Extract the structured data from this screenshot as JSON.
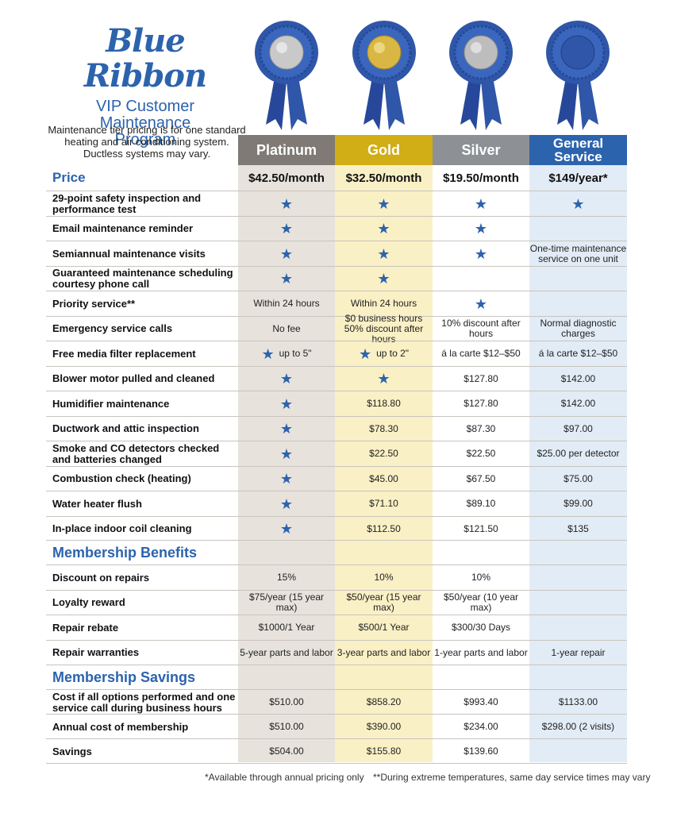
{
  "brand": {
    "title": "Blue Ribbon",
    "subtitle": [
      "VIP Customer",
      "Maintenance",
      "Program"
    ]
  },
  "intro": "Maintenance tier pricing is for one standard heating and air conditioning system. Ductless systems may vary.",
  "colors": {
    "accent": "#2c63ad",
    "platinum_header": "#7f7a76",
    "gold_header": "#d1ad16",
    "silver_header": "#8d9095",
    "general_header": "#2c63ad",
    "platinum_bg": "#e7e3dc",
    "gold_bg": "#faf0c5",
    "general_bg": "#e2ecf6"
  },
  "ribbons": [
    {
      "name": "platinum",
      "medal": "#c9c9c9",
      "icon": "ribbon-award-icon"
    },
    {
      "name": "gold",
      "medal": "#d9b744",
      "icon": "ribbon-award-icon"
    },
    {
      "name": "silver",
      "medal": "#bdbdbd",
      "icon": "ribbon-award-icon"
    },
    {
      "name": "general",
      "medal": "#2f56a8",
      "icon": "ribbon-award-icon"
    }
  ],
  "tiers": [
    "Platinum",
    "Gold",
    "Silver",
    "General Service"
  ],
  "price": {
    "label": "Price",
    "values": [
      "$42.50/month",
      "$32.50/month",
      "$19.50/month",
      "$149/year*"
    ]
  },
  "features": [
    {
      "label": "29-point safety inspection and performance test",
      "values": [
        "★",
        "★",
        "★",
        "★"
      ]
    },
    {
      "label": "Email maintenance reminder",
      "values": [
        "★",
        "★",
        "★",
        ""
      ]
    },
    {
      "label": "Semiannual maintenance visits",
      "values": [
        "★",
        "★",
        "★",
        "One-time maintenance service on one unit"
      ]
    },
    {
      "label": "Guaranteed maintenance scheduling courtesy phone call",
      "values": [
        "★",
        "★",
        "",
        ""
      ]
    },
    {
      "label": "Priority service**",
      "values": [
        "Within 24 hours",
        "Within 24 hours",
        "★",
        ""
      ]
    },
    {
      "label": "Emergency service calls",
      "values": [
        "No fee",
        "$0 business hours 50% discount after hours",
        "10% discount after hours",
        "Normal diagnostic charges"
      ]
    },
    {
      "label": "Free media filter replacement",
      "values": [
        "★ up to 5\"",
        "★ up to 2\"",
        "á la carte $12–$50",
        "á la carte $12–$50"
      ]
    },
    {
      "label": "Blower motor pulled and cleaned",
      "values": [
        "★",
        "★",
        "$127.80",
        "$142.00"
      ]
    },
    {
      "label": "Humidifier maintenance",
      "values": [
        "★",
        "$118.80",
        "$127.80",
        "$142.00"
      ]
    },
    {
      "label": "Ductwork and attic inspection",
      "values": [
        "★",
        "$78.30",
        "$87.30",
        "$97.00"
      ]
    },
    {
      "label": "Smoke and CO detectors checked and batteries changed",
      "values": [
        "★",
        "$22.50",
        "$22.50",
        "$25.00 per detector"
      ]
    },
    {
      "label": "Combustion check (heating)",
      "values": [
        "★",
        "$45.00",
        "$67.50",
        "$75.00"
      ]
    },
    {
      "label": "Water heater flush",
      "values": [
        "★",
        "$71.10",
        "$89.10",
        "$99.00"
      ]
    },
    {
      "label": "In-place indoor coil cleaning",
      "values": [
        "★",
        "$112.50",
        "$121.50",
        "$135"
      ]
    }
  ],
  "benefits": {
    "title": "Membership Benefits",
    "rows": [
      {
        "label": "Discount on repairs",
        "values": [
          "15%",
          "10%",
          "10%",
          ""
        ]
      },
      {
        "label": "Loyalty reward",
        "values": [
          "$75/year (15 year max)",
          "$50/year (15 year max)",
          "$50/year (10 year max)",
          ""
        ]
      },
      {
        "label": "Repair rebate",
        "values": [
          "$1000/1 Year",
          "$500/1 Year",
          "$300/30 Days",
          ""
        ]
      },
      {
        "label": "Repair warranties",
        "values": [
          "5-year parts and labor",
          "3-year parts and labor",
          "1-year parts and labor",
          "1-year repair"
        ]
      }
    ]
  },
  "savings": {
    "title": "Membership Savings",
    "rows": [
      {
        "label": "Cost if all options performed and one service call during business hours",
        "values": [
          "$510.00",
          "$858.20",
          "$993.40",
          "$1133.00"
        ]
      },
      {
        "label": "Annual cost of membership",
        "values": [
          "$510.00",
          "$390.00",
          "$234.00",
          "$298.00 (2 visits)"
        ]
      },
      {
        "label": "Savings",
        "values": [
          "$504.00",
          "$155.80",
          "$139.60",
          ""
        ]
      }
    ]
  },
  "footnotes": [
    "*Available through annual pricing only",
    "**During extreme temperatures, same day service times may vary"
  ]
}
